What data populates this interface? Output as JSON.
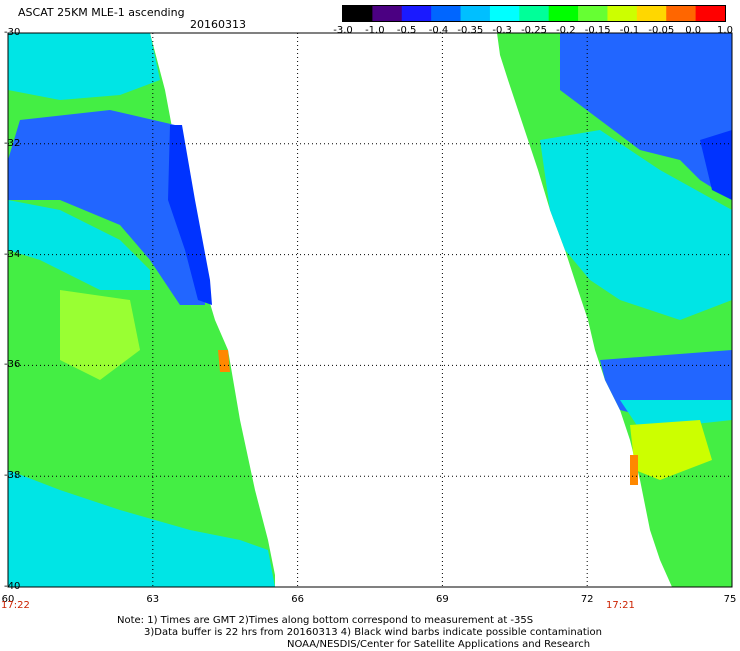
{
  "header": {
    "title": "ASCAT 25KM MLE-1 ascending",
    "date": "20160313"
  },
  "colorbar": {
    "labels": [
      "-3.0",
      "-1.0",
      "-0.5",
      "-0.4",
      "-0.35",
      "-0.3",
      "-0.25",
      "-0.2",
      "-0.15",
      "-0.1",
      "-0.05",
      "0.0",
      "1.0"
    ],
    "colors": [
      "#000000",
      "#4b0082",
      "#1a1aff",
      "#0066ff",
      "#00bfff",
      "#00ffff",
      "#00ff99",
      "#00ff00",
      "#66ff33",
      "#ccff00",
      "#ffd700",
      "#ff6600",
      "#ff0000"
    ]
  },
  "axes": {
    "y_labels": [
      "-30",
      "-32",
      "-34",
      "-36",
      "-38",
      "-40"
    ],
    "x_labels": [
      "60",
      "63",
      "66",
      "69",
      "72",
      "75"
    ],
    "lat_range": [
      -40,
      -30
    ],
    "lon_range": [
      60,
      75
    ]
  },
  "times": {
    "left": "17:22",
    "right": "17:21"
  },
  "note": {
    "line1": "Note: 1) Times are GMT 2)Times along bottom correspond to measurement at -35S",
    "line2": "3)Data buffer is 22 hrs from 20160313 4) Black wind barbs indicate possible contamination",
    "line3": "NOAA/NESDIS/Center for Satellite Applications and Research"
  }
}
